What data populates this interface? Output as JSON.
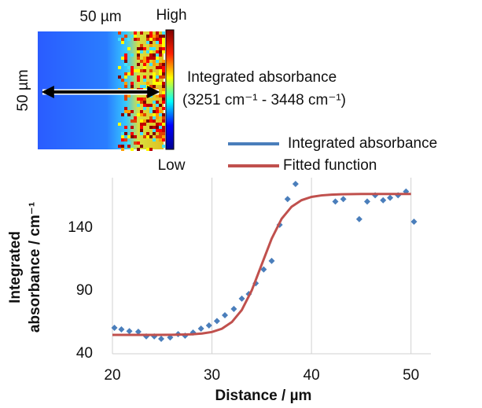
{
  "image_panel": {
    "scale_x": "50 µm",
    "scale_y": "50 µm",
    "colorbar_high": "High",
    "colorbar_low": "Low",
    "label": "Integrated absorbance",
    "range": "(3251 cm⁻¹ - 3448 cm⁻¹)"
  },
  "chart_data": {
    "type": "scatter",
    "x_label": "Distance / µm",
    "y_label": [
      "Integrated",
      "absorbance / cm⁻¹"
    ],
    "xlim": [
      20,
      52
    ],
    "ylim": [
      40,
      180
    ],
    "xticks": [
      20,
      30,
      40,
      50
    ],
    "yticks": [
      40,
      90,
      140
    ],
    "grid": "x",
    "legend": "top-right",
    "series": [
      {
        "name": "Integrated absorbance",
        "color": "#4a7ebb",
        "type": "scatter",
        "x": [
          20.2,
          20.9,
          21.7,
          22.6,
          23.4,
          24.2,
          24.9,
          25.8,
          26.6,
          27.3,
          28.1,
          28.9,
          29.7,
          30.5,
          31.3,
          32.2,
          33,
          33.7,
          34.4,
          35.2,
          36,
          36.8,
          37.6,
          38.4,
          42.4,
          43.2,
          44.8,
          45.6,
          46.4,
          47.2,
          47.9,
          48.7,
          49.5,
          50.3
        ],
        "values": [
          60.6,
          59.4,
          58,
          57.5,
          53.8,
          53.8,
          51.9,
          53,
          55.6,
          54.4,
          56.9,
          60,
          62.5,
          66,
          70.6,
          75.6,
          83.8,
          87.5,
          96,
          107,
          113.8,
          142.5,
          163,
          175,
          161,
          163,
          147,
          161,
          166,
          162,
          164,
          166,
          169,
          145
        ]
      },
      {
        "name": "Fitted function",
        "color": "#c0504d",
        "type": "line",
        "x": [
          20,
          22,
          24,
          26,
          28,
          29,
          30,
          31,
          32,
          33,
          34,
          35,
          36,
          37,
          38,
          39,
          40,
          41,
          42,
          43,
          45,
          47,
          50
        ],
        "values": [
          55,
          55,
          55,
          55.1,
          55.5,
          56.1,
          57.3,
          59.9,
          65.2,
          74.8,
          90.4,
          111,
          131.5,
          147.3,
          156.9,
          162.1,
          164.7,
          165.9,
          166.5,
          166.8,
          167,
          167,
          167
        ]
      }
    ]
  }
}
